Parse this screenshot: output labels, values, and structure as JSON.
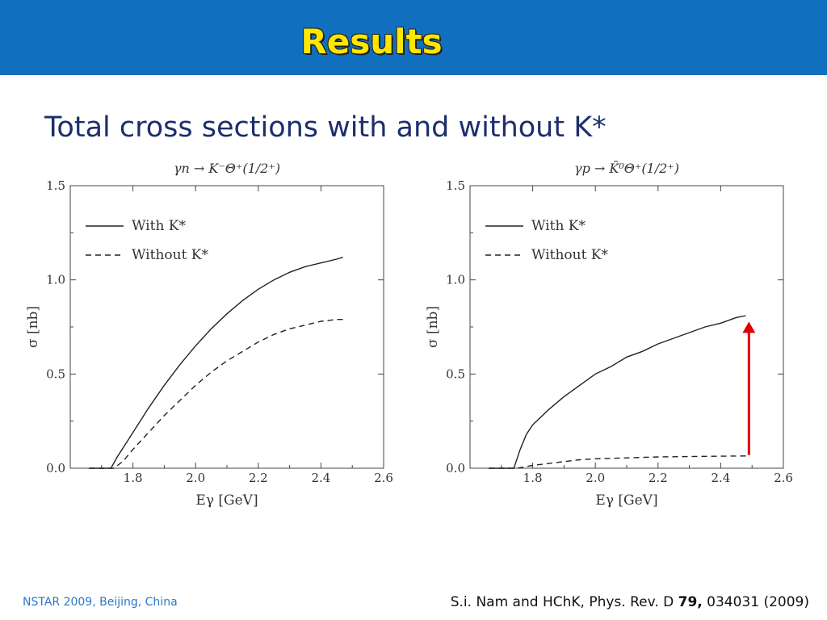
{
  "slide": {
    "title": "Results",
    "subtitle": "Total cross sections with and without K*",
    "footer_left": "NSTAR 2009, Beijing, China",
    "citation": {
      "prefix": "S.i. Nam and HChK, Phys. Rev. D ",
      "volume": "79,",
      "suffix": " 034031  (2009)"
    }
  },
  "colors": {
    "banner": "#1070bf",
    "title": "#ffe600",
    "subtitle": "#1c2e6e",
    "footer_left": "#2a78c8",
    "arrow": "#e00000"
  },
  "chart_data": [
    {
      "type": "line",
      "title": "γn → K⁻Θ⁺(1/2⁺)",
      "xlabel": "Eγ [GeV]",
      "ylabel": "σ [nb]",
      "xlim": [
        1.6,
        2.6
      ],
      "ylim": [
        0.0,
        1.5
      ],
      "xticks": [
        "1.8",
        "2.0",
        "2.2",
        "2.4",
        "2.6"
      ],
      "yticks": [
        "0.0",
        "0.5",
        "1.0",
        "1.5"
      ],
      "legend_position": "top-left",
      "series": [
        {
          "name": "With K*",
          "style": "solid",
          "x": [
            1.66,
            1.7,
            1.73,
            1.75,
            1.8,
            1.85,
            1.9,
            1.95,
            2.0,
            2.05,
            2.1,
            2.15,
            2.2,
            2.25,
            2.3,
            2.35,
            2.4,
            2.45,
            2.47
          ],
          "y": [
            0.0,
            0.0,
            0.0,
            0.06,
            0.19,
            0.32,
            0.44,
            0.55,
            0.65,
            0.74,
            0.82,
            0.89,
            0.95,
            1.0,
            1.04,
            1.07,
            1.09,
            1.11,
            1.12
          ]
        },
        {
          "name": "Without K*",
          "style": "dashed",
          "x": [
            1.66,
            1.7,
            1.74,
            1.77,
            1.8,
            1.85,
            1.9,
            1.95,
            2.0,
            2.05,
            2.1,
            2.15,
            2.2,
            2.25,
            2.3,
            2.35,
            2.4,
            2.45,
            2.47
          ],
          "y": [
            0.0,
            0.0,
            0.0,
            0.04,
            0.1,
            0.19,
            0.28,
            0.36,
            0.44,
            0.51,
            0.57,
            0.62,
            0.67,
            0.71,
            0.74,
            0.76,
            0.78,
            0.79,
            0.79
          ]
        }
      ]
    },
    {
      "type": "line",
      "title": "γp → K̄⁰Θ⁺(1/2⁺)",
      "xlabel": "Eγ [GeV]",
      "ylabel": "σ [nb]",
      "xlim": [
        1.6,
        2.6
      ],
      "ylim": [
        0.0,
        1.5
      ],
      "xticks": [
        "1.8",
        "2.0",
        "2.2",
        "2.4",
        "2.6"
      ],
      "yticks": [
        "0.0",
        "0.5",
        "1.0",
        "1.5"
      ],
      "legend_position": "top-left",
      "annotation": "red upward arrow at x≈2.49 from y≈0.07 to y≈0.77",
      "series": [
        {
          "name": "With K*",
          "style": "solid",
          "x": [
            1.66,
            1.7,
            1.74,
            1.75,
            1.76,
            1.78,
            1.8,
            1.85,
            1.9,
            1.95,
            2.0,
            2.05,
            2.1,
            2.15,
            2.2,
            2.25,
            2.3,
            2.35,
            2.4,
            2.45,
            2.48
          ],
          "y": [
            0.0,
            0.0,
            0.0,
            0.05,
            0.1,
            0.18,
            0.23,
            0.31,
            0.38,
            0.44,
            0.5,
            0.54,
            0.59,
            0.62,
            0.66,
            0.69,
            0.72,
            0.75,
            0.77,
            0.8,
            0.81
          ]
        },
        {
          "name": "Without K*",
          "style": "dashed",
          "x": [
            1.66,
            1.7,
            1.75,
            1.8,
            1.85,
            1.9,
            1.95,
            2.0,
            2.1,
            2.2,
            2.3,
            2.4,
            2.48
          ],
          "y": [
            0.0,
            0.0,
            0.0,
            0.015,
            0.025,
            0.035,
            0.045,
            0.05,
            0.055,
            0.06,
            0.062,
            0.064,
            0.065
          ]
        }
      ]
    }
  ]
}
